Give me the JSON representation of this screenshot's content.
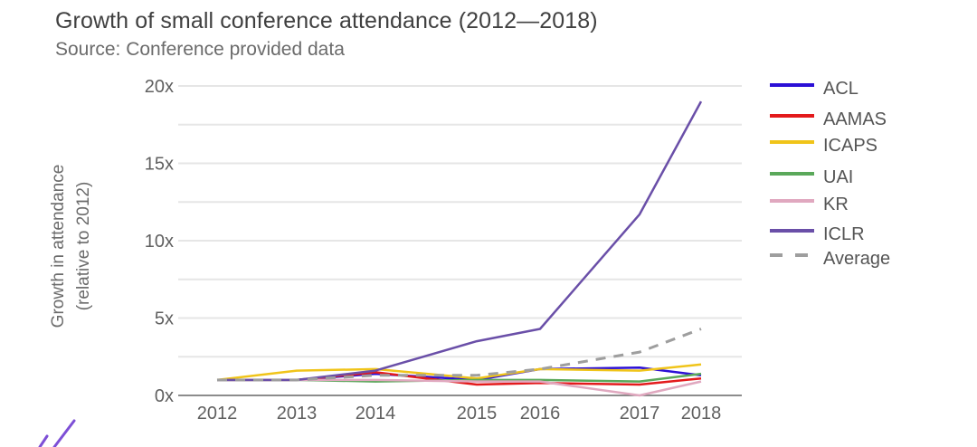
{
  "chart_data": {
    "type": "line",
    "title": "Growth of small conference attendance (2012—2018)",
    "subtitle": "Source: Conference provided data",
    "xlabel": "",
    "ylabel": [
      "Growth in attendance",
      "(relative to 2012)"
    ],
    "x": [
      "2012",
      "2013",
      "2014",
      "2015",
      "2016",
      "2017",
      "2018"
    ],
    "ylim": [
      0,
      20
    ],
    "yticks": [
      0,
      5,
      10,
      15,
      20
    ],
    "ytick_labels": [
      "0x",
      "5x",
      "10x",
      "15x",
      "20x"
    ],
    "grid": true,
    "grid_step": 2.5,
    "legend_position": "right",
    "series": [
      {
        "name": "ACL",
        "color": "#2b0fd6",
        "dashed": false,
        "values": [
          1.0,
          1.0,
          1.4,
          1.0,
          1.7,
          1.8,
          1.3
        ]
      },
      {
        "name": "AAMAS",
        "color": "#e31a1c",
        "dashed": false,
        "values": [
          1.0,
          1.0,
          1.5,
          0.7,
          0.8,
          0.7,
          1.1
        ]
      },
      {
        "name": "ICAPS",
        "color": "#f0c419",
        "dashed": false,
        "values": [
          1.0,
          1.6,
          1.7,
          1.1,
          1.7,
          1.6,
          2.0
        ]
      },
      {
        "name": "UAI",
        "color": "#5aa85a",
        "dashed": false,
        "values": [
          1.0,
          1.0,
          0.9,
          1.0,
          1.0,
          0.9,
          1.4
        ]
      },
      {
        "name": "KR",
        "color": "#e0a8bf",
        "dashed": false,
        "values": [
          1.0,
          1.0,
          1.0,
          0.9,
          0.9,
          0.0,
          0.9
        ]
      },
      {
        "name": "ICLR",
        "color": "#6a4fa8",
        "dashed": false,
        "values": [
          1.0,
          1.0,
          1.6,
          3.5,
          4.3,
          11.7,
          19.0
        ]
      },
      {
        "name": "Average",
        "color": "#9e9e9e",
        "dashed": true,
        "values": [
          1.0,
          1.0,
          1.3,
          1.3,
          1.7,
          2.8,
          4.3
        ]
      }
    ]
  },
  "decoration": {
    "color": "#7d4fd6"
  }
}
